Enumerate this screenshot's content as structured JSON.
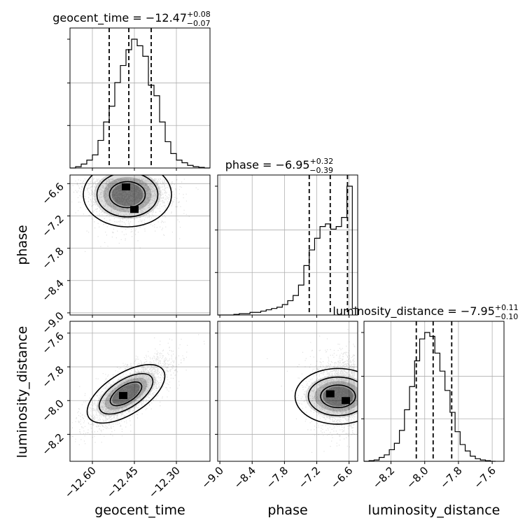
{
  "chart_data": {
    "type": "corner",
    "parameters": [
      "geocent_time",
      "phase",
      "luminosity_distance"
    ],
    "axis_labels": [
      "geocent_time",
      "phase",
      "luminosity_distance"
    ],
    "ranges": {
      "geocent_time": [
        -12.68,
        -12.18
      ],
      "phase": [
        -9.04,
        -6.44
      ],
      "luminosity_distance": [
        -8.36,
        -7.53
      ]
    },
    "ticks": {
      "geocent_time": {
        "values": [
          -12.6,
          -12.45,
          -12.3
        ],
        "labels": [
          "−12.60",
          "−12.45",
          "−12.30"
        ]
      },
      "phase": {
        "values": [
          -9.0,
          -8.4,
          -7.8,
          -7.2,
          -6.6
        ],
        "labels": [
          "−9.0",
          "−8.4",
          "−7.8",
          "−7.2",
          "−6.6"
        ]
      },
      "luminosity_distance": {
        "values": [
          -8.2,
          -8.0,
          -7.8,
          -7.6
        ],
        "labels": [
          "−8.2",
          "−8.0",
          "−7.8",
          "−7.6"
        ]
      }
    },
    "titles": [
      {
        "param": "geocent_time",
        "label": "geocent_time",
        "median": "−12.47",
        "plus": "+0.08",
        "minus": "−0.07"
      },
      {
        "param": "phase",
        "label": "phase",
        "median": "−6.95",
        "plus": "+0.32",
        "minus": "−0.39"
      },
      {
        "param": "luminosity_distance",
        "label": "luminosity_distance",
        "median": "−7.95",
        "plus": "+0.11",
        "minus": "−0.10"
      }
    ],
    "quantiles": {
      "geocent_time": [
        -12.54,
        -12.47,
        -12.39
      ],
      "phase": [
        -7.34,
        -6.95,
        -6.63
      ],
      "luminosity_distance": [
        -8.05,
        -7.95,
        -7.84
      ]
    },
    "histograms": {
      "geocent_time": {
        "edges": [
          -12.68,
          -12.66,
          -12.64,
          -12.62,
          -12.6,
          -12.58,
          -12.56,
          -12.54,
          -12.52,
          -12.5,
          -12.48,
          -12.46,
          -12.44,
          -12.42,
          -12.4,
          -12.38,
          -12.36,
          -12.34,
          -12.32,
          -12.3,
          -12.28,
          -12.26,
          -12.24,
          -12.22,
          -12.2,
          -12.18
        ],
        "counts": [
          0,
          0.01,
          0.03,
          0.06,
          0.1,
          0.21,
          0.35,
          0.47,
          0.65,
          0.78,
          0.9,
          0.98,
          0.93,
          0.85,
          0.63,
          0.55,
          0.35,
          0.2,
          0.11,
          0.06,
          0.04,
          0.02,
          0.01,
          0.005,
          0
        ]
      },
      "phase": {
        "edges": [
          -9.04,
          -8.94,
          -8.84,
          -8.74,
          -8.64,
          -8.54,
          -8.44,
          -8.34,
          -8.24,
          -8.14,
          -8.04,
          -7.94,
          -7.84,
          -7.74,
          -7.64,
          -7.54,
          -7.44,
          -7.34,
          -7.24,
          -7.14,
          -7.04,
          -6.94,
          -6.84,
          -6.74,
          -6.64,
          -6.54,
          -6.44
        ],
        "counts": [
          0,
          0,
          0,
          0.005,
          0.01,
          0.01,
          0.02,
          0.02,
          0.03,
          0.04,
          0.05,
          0.06,
          0.08,
          0.11,
          0.15,
          0.23,
          0.38,
          0.5,
          0.59,
          0.68,
          0.7,
          0.66,
          0.68,
          0.75,
          0.99,
          0.05
        ]
      },
      "luminosity_distance": {
        "edges": [
          -8.36,
          -8.33,
          -8.3,
          -8.27,
          -8.24,
          -8.21,
          -8.18,
          -8.15,
          -8.12,
          -8.09,
          -8.06,
          -8.03,
          -8.0,
          -7.97,
          -7.94,
          -7.91,
          -7.88,
          -7.85,
          -7.82,
          -7.79,
          -7.76,
          -7.73,
          -7.7,
          -7.67,
          -7.64,
          -7.61,
          -7.58
        ],
        "counts": [
          0,
          0.005,
          0.01,
          0.03,
          0.05,
          0.09,
          0.14,
          0.24,
          0.4,
          0.58,
          0.78,
          0.95,
          1.0,
          0.97,
          0.84,
          0.7,
          0.55,
          0.38,
          0.23,
          0.13,
          0.08,
          0.04,
          0.02,
          0.01,
          0.005,
          0
        ]
      }
    },
    "pairs": [
      {
        "x": "geocent_time",
        "y": "phase",
        "correlation": 0.3,
        "mode": [
          -12.48,
          -6.66
        ],
        "secondary_mode": [
          -12.45,
          -7.08
        ]
      },
      {
        "x": "geocent_time",
        "y": "luminosity_distance",
        "correlation": 0.75,
        "mode": [
          -12.49,
          -7.97
        ]
      },
      {
        "x": "phase",
        "y": "luminosity_distance",
        "correlation": 0.0,
        "mode": [
          -6.66,
          -8.0
        ],
        "secondary_mode": [
          -6.95,
          -7.96
        ]
      }
    ],
    "grid": true
  }
}
